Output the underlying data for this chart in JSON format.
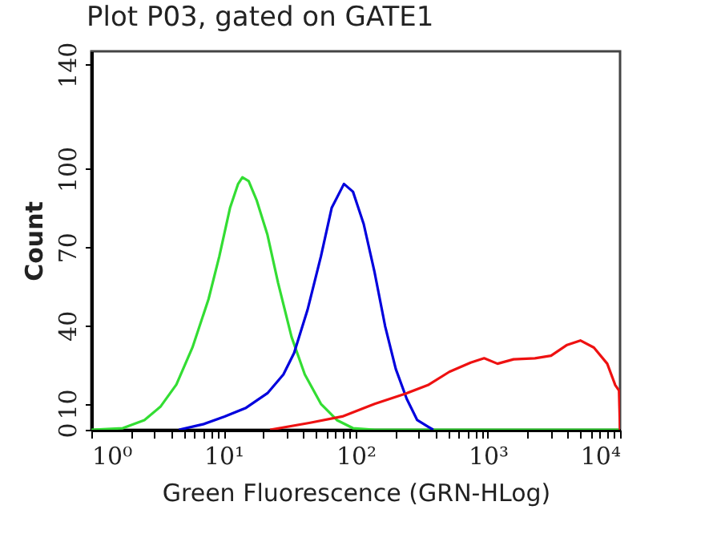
{
  "chart_data": {
    "type": "line",
    "title": "Plot P03, gated on GATE1",
    "xlabel": "Green Fluorescence (GRN-HLog)",
    "ylabel": "Count",
    "log": "x",
    "grid": false,
    "legend": false,
    "marker": "none",
    "line_style": "solid",
    "xlim": [
      1,
      10000
    ],
    "ylim": [
      0,
      145
    ],
    "xticks": [
      {
        "value": 1,
        "label": "10⁰"
      },
      {
        "value": 2,
        "label": null
      },
      {
        "value": 3,
        "label": null
      },
      {
        "value": 4,
        "label": null
      },
      {
        "value": 5,
        "label": null
      },
      {
        "value": 6,
        "label": null
      },
      {
        "value": 7,
        "label": null
      },
      {
        "value": 8,
        "label": null
      },
      {
        "value": 9,
        "label": null
      },
      {
        "value": 10,
        "label": "10¹"
      },
      {
        "value": 20,
        "label": null
      },
      {
        "value": 30,
        "label": null
      },
      {
        "value": 40,
        "label": null
      },
      {
        "value": 50,
        "label": null
      },
      {
        "value": 60,
        "label": null
      },
      {
        "value": 70,
        "label": null
      },
      {
        "value": 80,
        "label": null
      },
      {
        "value": 90,
        "label": null
      },
      {
        "value": 100,
        "label": "10²"
      },
      {
        "value": 200,
        "label": null
      },
      {
        "value": 300,
        "label": null
      },
      {
        "value": 400,
        "label": null
      },
      {
        "value": 500,
        "label": null
      },
      {
        "value": 600,
        "label": null
      },
      {
        "value": 700,
        "label": null
      },
      {
        "value": 800,
        "label": null
      },
      {
        "value": 900,
        "label": null
      },
      {
        "value": 1000,
        "label": "10³"
      },
      {
        "value": 2000,
        "label": null
      },
      {
        "value": 3000,
        "label": null
      },
      {
        "value": 4000,
        "label": null
      },
      {
        "value": 5000,
        "label": null
      },
      {
        "value": 6000,
        "label": null
      },
      {
        "value": 7000,
        "label": null
      },
      {
        "value": 8000,
        "label": null
      },
      {
        "value": 9000,
        "label": null
      },
      {
        "value": 10000,
        "label": "10⁴"
      }
    ],
    "yticks": [
      0,
      10,
      40,
      70,
      100,
      140
    ],
    "series": [
      {
        "color": "#33dd33",
        "x": [
          1,
          1.73,
          2.52,
          3.33,
          4.4,
          5.82,
          7.7,
          9.29,
          11.2,
          12.9,
          13.9,
          15.5,
          17.8,
          21.5,
          25.9,
          32.7,
          41.2,
          54.6,
          72.1,
          95.4,
          139,
          10000
        ],
        "values": [
          0,
          0.6,
          3.7,
          8.8,
          17.3,
          31.5,
          50,
          66.4,
          85,
          94.2,
          96.7,
          95.3,
          88,
          74.7,
          56.2,
          35.6,
          21.2,
          9.9,
          3.7,
          0.6,
          0,
          0
        ]
      },
      {
        "color": "#0000dd",
        "x": [
          4.6,
          7,
          10.2,
          14.8,
          21.5,
          28.4,
          34.2,
          43.2,
          54.6,
          65.8,
          81.5,
          95.4,
          115,
          139,
          167,
          201,
          243,
          292,
          352,
          386
        ],
        "values": [
          0,
          2.1,
          5.1,
          8.4,
          14,
          21.2,
          29.4,
          45.9,
          66.5,
          85,
          94.2,
          91.2,
          78.8,
          60.3,
          39.7,
          23.3,
          11.9,
          3.7,
          1.2,
          0
        ]
      },
      {
        "color": "#ee1111",
        "x": [
          22.5,
          45.3,
          79.2,
          139,
          243,
          352,
          511,
          741,
          937,
          1183,
          1564,
          2270,
          3006,
          3975,
          5010,
          6339,
          8000,
          9200,
          9820,
          10000
        ],
        "values": [
          0,
          2.7,
          5.1,
          9.9,
          14,
          17.1,
          22.2,
          25.7,
          27.4,
          25.3,
          27,
          27.4,
          28.4,
          32.5,
          34.2,
          31.5,
          25.3,
          17.1,
          15,
          0
        ]
      }
    ]
  }
}
